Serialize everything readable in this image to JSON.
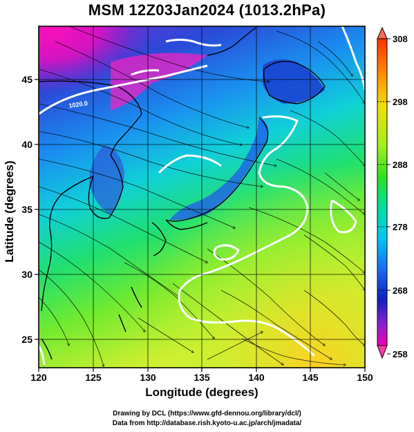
{
  "title": "MSM 12Z03Jan2024 (1013.2hPa)",
  "xlabel": "Longitude (degrees)",
  "ylabel": "Latitude  (degrees)",
  "credits": [
    "Drawing by DCL (https://www.gfd-dennou.org/library/dcl/)",
    "Data from http://database.rish.kyoto-u.ac.jp/arch/jmadata/"
  ],
  "map": {
    "lon_range": [
      120,
      150
    ],
    "lat_range": [
      22.5,
      47.5
    ],
    "lon_ticks": [
      "120",
      "125",
      "130",
      "135",
      "140",
      "145",
      "150"
    ],
    "lat_ticks": [
      "25",
      "30",
      "35",
      "40",
      "45"
    ],
    "contour_label": "1020.0",
    "variable": "temperature with streamlines"
  },
  "colorbar": {
    "min": 258,
    "max": 308,
    "tick_labels": [
      "308",
      "298",
      "288",
      "278",
      "268",
      "258"
    ],
    "colors": [
      "#e0f0ff",
      "#f800b0",
      "#9a1fd0",
      "#1020c8",
      "#1a64f0",
      "#00d0f0",
      "#00e8a0",
      "#30e020",
      "#d0f020",
      "#ffb000",
      "#ff4000",
      "#ff6060"
    ]
  }
}
